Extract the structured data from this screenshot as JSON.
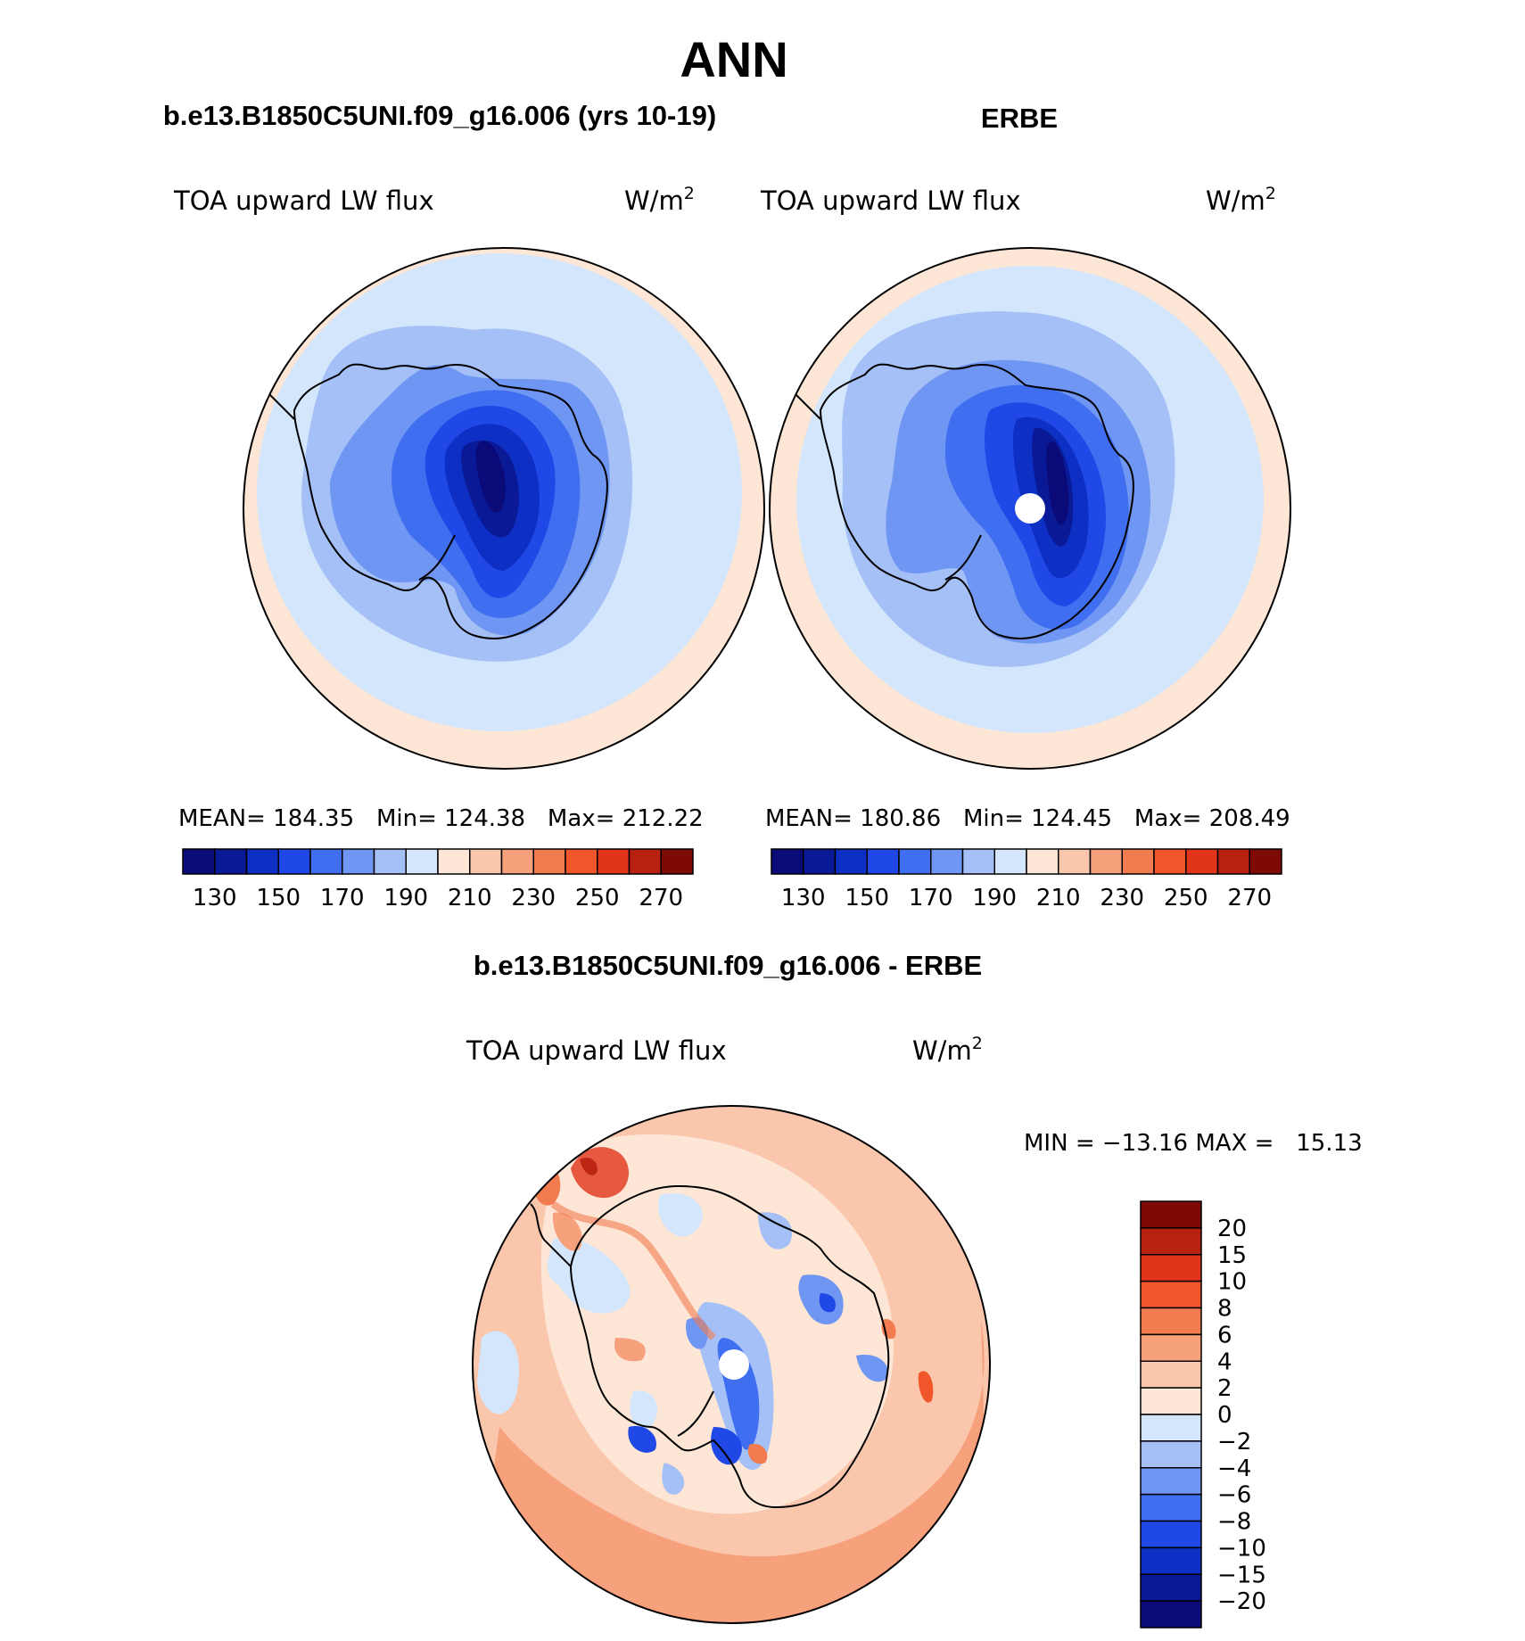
{
  "page": {
    "title": "ANN"
  },
  "panels": [
    {
      "id": "model",
      "header": "b.e13.B1850C5UNI.f09_g16.006 (yrs 10-19)",
      "variable": "TOA upward LW flux",
      "units_base": "W/m",
      "units_exp": "2",
      "stats": {
        "mean_label": "MEAN=",
        "mean": "184.35",
        "min_label": "Min=",
        "min": "124.38",
        "max_label": "Max=",
        "max": "212.22"
      },
      "colorbar_labels": [
        "130",
        "150",
        "170",
        "190",
        "210",
        "230",
        "250",
        "270"
      ],
      "pole_mask": false
    },
    {
      "id": "obs",
      "header": "ERBE",
      "variable": "TOA upward LW flux",
      "units_base": "W/m",
      "units_exp": "2",
      "stats": {
        "mean_label": "MEAN=",
        "mean": "180.86",
        "min_label": "Min=",
        "min": "124.45",
        "max_label": "Max=",
        "max": "208.49"
      },
      "colorbar_labels": [
        "130",
        "150",
        "170",
        "190",
        "210",
        "230",
        "250",
        "270"
      ],
      "pole_mask": true
    }
  ],
  "diff_panel": {
    "header": "b.e13.B1850C5UNI.f09_g16.006 - ERBE",
    "variable": "TOA upward LW flux",
    "units_base": "W/m",
    "units_exp": "2",
    "minmax_text": "MIN = −13.16 MAX =   15.13",
    "colorbar_labels": [
      "20",
      "15",
      "10",
      "8",
      "6",
      "4",
      "2",
      "0",
      "−2",
      "−4",
      "−6",
      "−8",
      "−10",
      "−15",
      "−20"
    ]
  },
  "colors": {
    "abs_scale": [
      "#0a0a78",
      "#0a1a96",
      "#0d2fc4",
      "#1f48e6",
      "#3f6ef0",
      "#6f96f2",
      "#a4c0f6",
      "#d4e6fb",
      "#fde6d6",
      "#fac7ad",
      "#f7a07c",
      "#f27b4f",
      "#f0562a",
      "#e0351a",
      "#b82010",
      "#7d0a05"
    ],
    "diff_scale": [
      "#7d0a05",
      "#b82010",
      "#e0351a",
      "#f0562a",
      "#f27b4f",
      "#f7a07c",
      "#fac7ad",
      "#fde6d6",
      "#d4e6fb",
      "#a4c0f6",
      "#6f96f2",
      "#3f6ef0",
      "#1f48e6",
      "#0d2fc4",
      "#0a1a96",
      "#0a0a78"
    ]
  }
}
